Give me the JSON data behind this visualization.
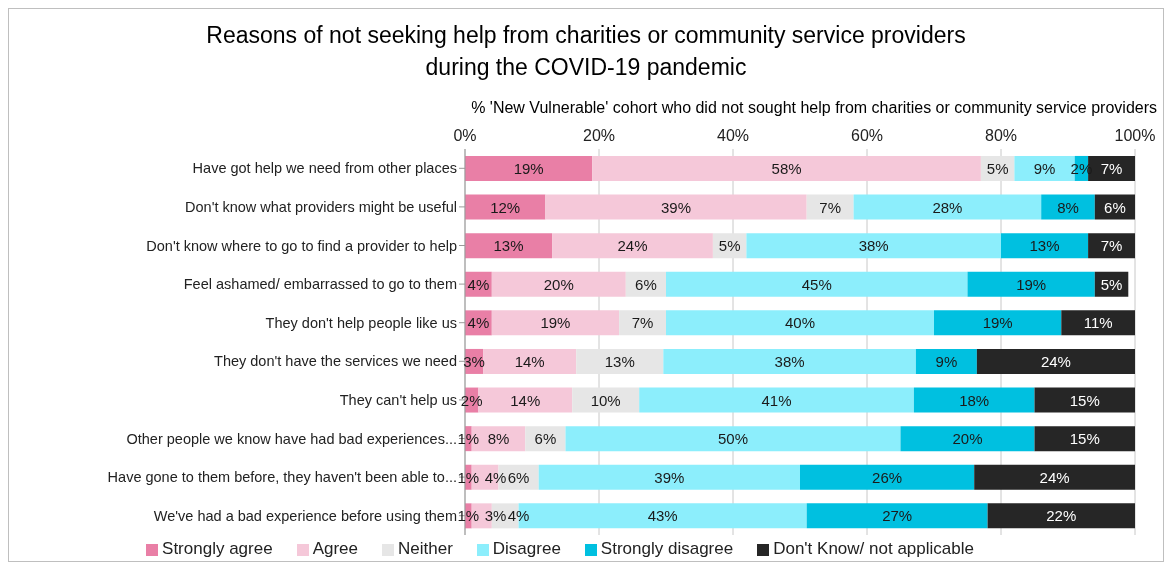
{
  "chart_data": {
    "type": "bar",
    "orientation": "horizontal",
    "stacked": true,
    "title": "Reasons of not seeking help from charities or community service providers\nduring the COVID-19 pandemic",
    "subtitle": "% 'New Vulnerable' cohort who did not sought help from charities or community service providers",
    "categories": [
      "Have got help we need from other places",
      "Don't know what providers might be useful",
      "Don't know where to go to find a provider to help",
      "Feel ashamed/ embarrassed to go to them",
      "They don't help people like us",
      "They don't have the services we need",
      "They can't help us",
      "Other people we know have had bad experiences...",
      "Have gone to them before, they haven't been able to...",
      "We've had a bad experience before using them"
    ],
    "series": [
      {
        "name": "Strongly agree",
        "color": "#e97fa6",
        "values": [
          19,
          12,
          13,
          4,
          4,
          2.7,
          2,
          1,
          1,
          1
        ],
        "value_labels": [
          "19%",
          "12%",
          "13%",
          "4%",
          "4%",
          "3%",
          "2%",
          "1%",
          "1%",
          "1%"
        ]
      },
      {
        "name": "Agree",
        "color": "#f5c8d9",
        "values": [
          58,
          39,
          24,
          20,
          19,
          13.9,
          14,
          8,
          4,
          3
        ],
        "value_labels": [
          "58%",
          "39%",
          "24%",
          "20%",
          "19%",
          "14%",
          "14%",
          "8%",
          "4%",
          "3%"
        ]
      },
      {
        "name": "Neither",
        "color": "#e6e6e6",
        "values": [
          5,
          7,
          5,
          6,
          7,
          13,
          10,
          6,
          6,
          4
        ],
        "value_labels": [
          "5%",
          "7%",
          "5%",
          "6%",
          "7%",
          "13%",
          "10%",
          "6%",
          "6%",
          "4%"
        ]
      },
      {
        "name": "Disagree",
        "color": "#8ceefc",
        "values": [
          9,
          28,
          38,
          45,
          40,
          37.7,
          41,
          50,
          39,
          43
        ],
        "value_labels": [
          "9%",
          "28%",
          "38%",
          "45%",
          "40%",
          "38%",
          "41%",
          "50%",
          "39%",
          "43%"
        ]
      },
      {
        "name": "Strongly disagree",
        "color": "#00c0e0",
        "values": [
          2,
          8,
          13,
          19,
          19,
          9.1,
          18,
          20,
          26,
          27
        ],
        "value_labels": [
          "2%",
          "8%",
          "13%",
          "19%",
          "19%",
          "9%",
          "18%",
          "20%",
          "26%",
          "27%"
        ]
      },
      {
        "name": "Don't Know/ not applicable",
        "color": "#262626",
        "values": [
          7,
          6,
          7,
          5,
          11,
          23.6,
          15,
          15,
          24,
          22
        ],
        "value_labels": [
          "7%",
          "6%",
          "7%",
          "5%",
          "11%",
          "24%",
          "15%",
          "15%",
          "24%",
          "22%"
        ]
      }
    ],
    "xlim": [
      0,
      100
    ],
    "xticks": [
      {
        "value": 0,
        "label": "0%"
      },
      {
        "value": 20,
        "label": "20%"
      },
      {
        "value": 40,
        "label": "40%"
      },
      {
        "value": 60,
        "label": "60%"
      },
      {
        "value": 80,
        "label": "80%"
      },
      {
        "value": 100,
        "label": "100%"
      }
    ],
    "grid": "x",
    "legend": "bottom"
  }
}
